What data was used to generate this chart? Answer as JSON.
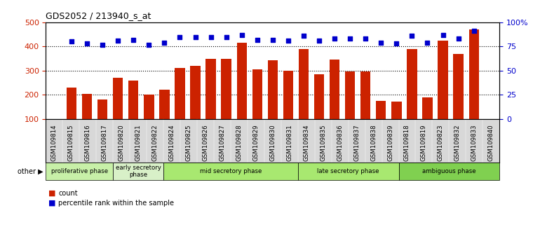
{
  "title": "GDS2052 / 213940_s_at",
  "samples": [
    "GSM109814",
    "GSM109815",
    "GSM109816",
    "GSM109817",
    "GSM109820",
    "GSM109821",
    "GSM109822",
    "GSM109824",
    "GSM109825",
    "GSM109826",
    "GSM109827",
    "GSM109828",
    "GSM109829",
    "GSM109830",
    "GSM109831",
    "GSM109834",
    "GSM109835",
    "GSM109836",
    "GSM109837",
    "GSM109838",
    "GSM109839",
    "GSM109818",
    "GSM109819",
    "GSM109823",
    "GSM109832",
    "GSM109833",
    "GSM109840"
  ],
  "counts": [
    230,
    205,
    180,
    270,
    258,
    200,
    222,
    310,
    320,
    350,
    348,
    415,
    305,
    342,
    300,
    390,
    285,
    345,
    298,
    297,
    175,
    172,
    390,
    190,
    425,
    370,
    470
  ],
  "percentiles": [
    80,
    78,
    77,
    81,
    82,
    77,
    79,
    85,
    85,
    85,
    85,
    87,
    82,
    82,
    81,
    86,
    81,
    83,
    83,
    83,
    79,
    78,
    86,
    79,
    87,
    83,
    91
  ],
  "phases": [
    {
      "label": "proliferative phase",
      "start": 0,
      "end": 4
    },
    {
      "label": "early secretory\nphase",
      "start": 4,
      "end": 7
    },
    {
      "label": "mid secretory phase",
      "start": 7,
      "end": 15
    },
    {
      "label": "late secretory phase",
      "start": 15,
      "end": 21
    },
    {
      "label": "ambiguous phase",
      "start": 21,
      "end": 27
    }
  ],
  "phase_colors": [
    "#c8f0a8",
    "#d8f0c8",
    "#a8e870",
    "#a8e870",
    "#80d050"
  ],
  "ylim_left": [
    100,
    500
  ],
  "ylim_right": [
    0,
    100
  ],
  "yticks_left": [
    100,
    200,
    300,
    400,
    500
  ],
  "yticks_right": [
    0,
    25,
    50,
    75,
    100
  ],
  "ytick_labels_right": [
    "0",
    "25",
    "50",
    "75",
    "100%"
  ],
  "bar_color": "#cc2200",
  "dot_color": "#0000cc",
  "grid_lines": [
    200,
    300,
    400
  ]
}
